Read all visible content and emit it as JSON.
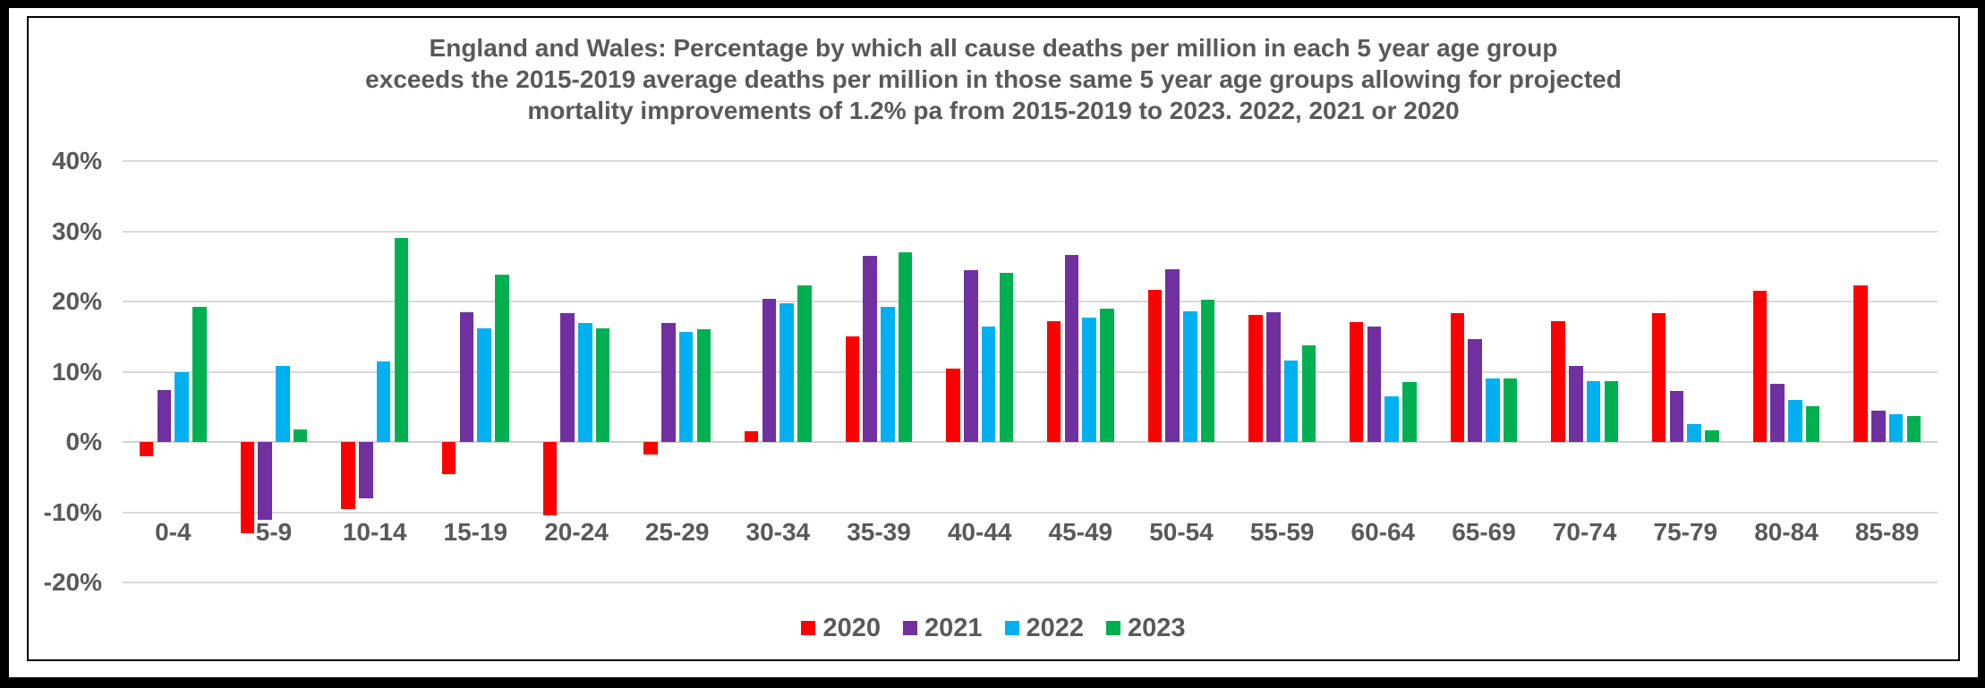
{
  "chart": {
    "title_lines": [
      "England and Wales: Percentage by which all cause deaths per million in each 5 year age group",
      "exceeds the 2015-2019 average deaths per million in those same 5 year age groups allowing for projected",
      "mortality improvements of 1.2% pa from 2015-2019 to 2023. 2022, 2021 or 2020"
    ]
  },
  "chart_data": {
    "type": "bar",
    "title": "England and Wales: Percentage by which all cause deaths per million in each 5 year age group exceeds the 2015-2019 average deaths per million in those same 5 year age groups allowing for projected mortality improvements of 1.2% pa from 2015-2019 to 2023. 2022, 2021 or 2020",
    "categories": [
      "0-4",
      "5-9",
      "10-14",
      "15-19",
      "20-24",
      "25-29",
      "30-34",
      "35-39",
      "40-44",
      "45-49",
      "50-54",
      "55-59",
      "60-64",
      "65-69",
      "70-74",
      "75-79",
      "80-84",
      "85-89"
    ],
    "series": [
      {
        "name": "2020",
        "color": "#FF0000",
        "values": [
          -2.0,
          -13.0,
          -9.5,
          -4.6,
          -10.5,
          -1.8,
          1.5,
          15.0,
          10.5,
          17.2,
          21.6,
          18.1,
          17.1,
          18.4,
          17.2,
          18.3,
          21.5,
          22.3
        ]
      },
      {
        "name": "2021",
        "color": "#7030A0",
        "values": [
          7.4,
          -11.1,
          -8.0,
          18.5,
          18.3,
          17.0,
          20.4,
          26.5,
          24.5,
          26.6,
          24.6,
          18.5,
          16.4,
          14.7,
          10.8,
          7.3,
          8.3,
          4.4
        ]
      },
      {
        "name": "2022",
        "color": "#00B0F0",
        "values": [
          9.9,
          10.8,
          11.5,
          16.2,
          17.0,
          15.7,
          19.7,
          19.2,
          16.4,
          17.7,
          18.6,
          11.6,
          6.5,
          9.1,
          8.6,
          2.6,
          6.0,
          3.9
        ]
      },
      {
        "name": "2023",
        "color": "#00B050",
        "values": [
          19.2,
          1.8,
          29.1,
          23.8,
          16.2,
          16.0,
          22.3,
          27.0,
          24.1,
          19.0,
          20.3,
          13.7,
          8.5,
          9.1,
          8.6,
          1.7,
          5.1,
          3.7
        ]
      }
    ],
    "yticks": [
      {
        "label": "40%",
        "value": 40
      },
      {
        "label": "30%",
        "value": 30
      },
      {
        "label": "20%",
        "value": 20
      },
      {
        "label": "10%",
        "value": 10
      },
      {
        "label": "0%",
        "value": 0
      },
      {
        "label": "-10%",
        "value": -10
      },
      {
        "label": "-20%",
        "value": -20
      }
    ],
    "ylim": [
      -20,
      40
    ],
    "grid": true,
    "legend_position": "bottom",
    "colors": {
      "gridline": "#D9D9D9",
      "axis_text": "#595959",
      "title_text": "#595959",
      "frame_border": "#000000",
      "background": "#FFFFFF"
    }
  }
}
